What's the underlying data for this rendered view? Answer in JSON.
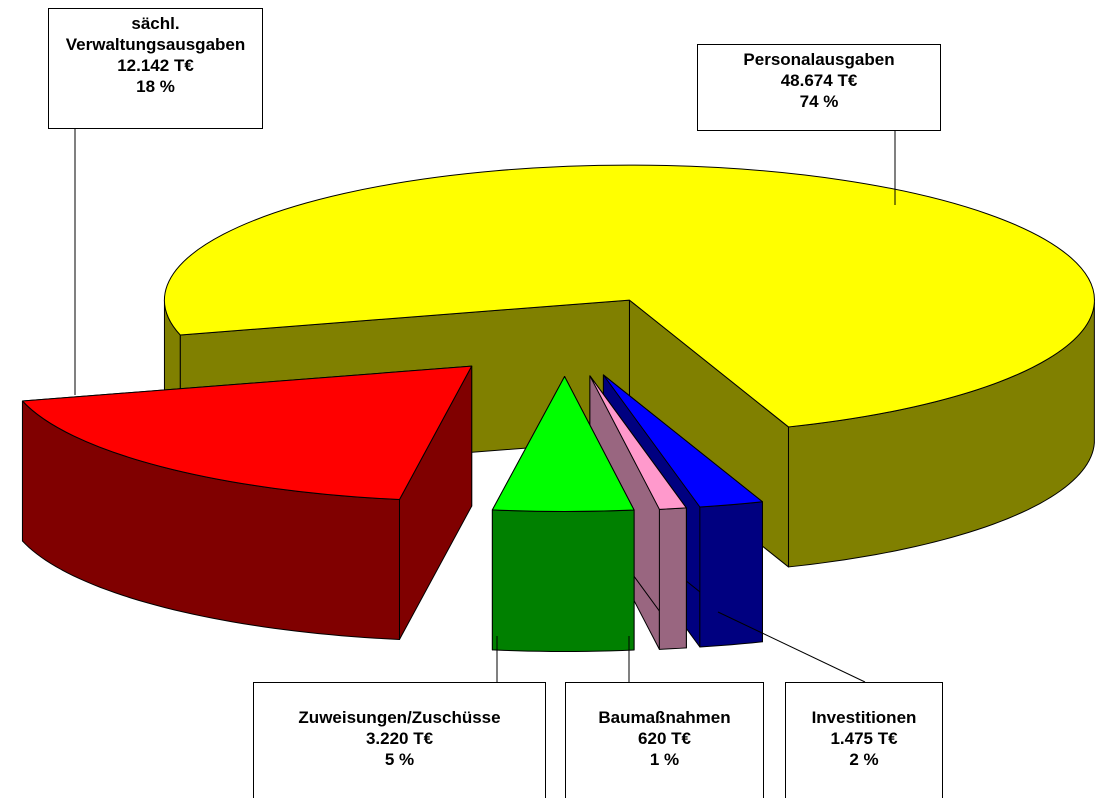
{
  "chart_data": {
    "type": "pie3d",
    "categories": [
      "Personalausgaben",
      "sächl. Verwaltungsausgaben",
      "Zuweisungen/Zuschüsse",
      "Baumaßnahmen",
      "Investitionen"
    ],
    "values": [
      48674,
      12142,
      3220,
      620,
      1475
    ],
    "value_labels": [
      "48.674 T€",
      "12.142 T€",
      "3.220 T€",
      "620 T€",
      "1.475 T€"
    ],
    "percents": [
      74,
      18,
      5,
      1,
      2
    ],
    "percent_labels": [
      "74 %",
      "18 %",
      "5 %",
      "1 %",
      "2 %"
    ],
    "colors": [
      "#ffff00",
      "#ff0000",
      "#00ff00",
      "#ff99cc",
      "#0000ff"
    ],
    "side_colors": [
      "#808000",
      "#800000",
      "#008000",
      "#996680",
      "#000080"
    ]
  }
}
